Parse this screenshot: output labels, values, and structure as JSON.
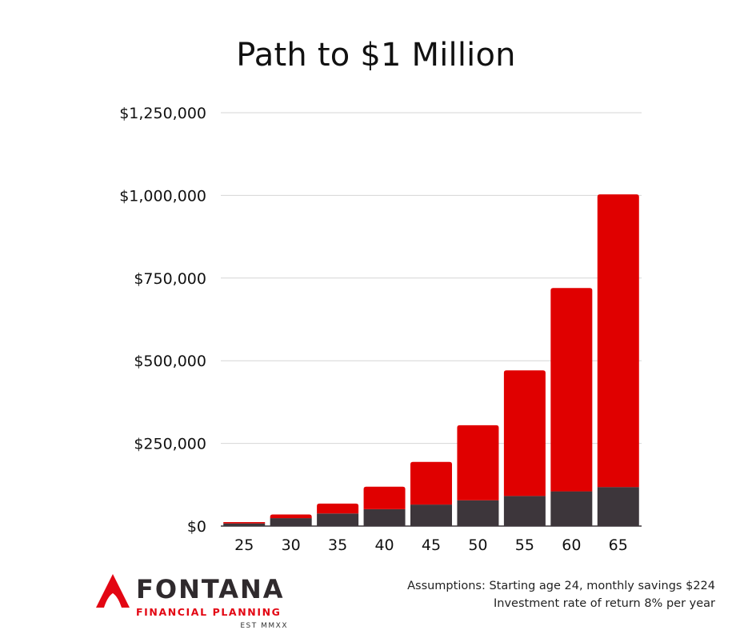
{
  "chart_data": {
    "type": "bar",
    "title": "Path to $1 Million",
    "xlabel": "",
    "ylabel": "",
    "stacked": true,
    "categories": [
      "25",
      "30",
      "35",
      "40",
      "45",
      "50",
      "55",
      "60",
      "65"
    ],
    "series": [
      {
        "values": [
          8000,
          24000,
          38000,
          51000,
          65000,
          78000,
          91000,
          105000,
          118000
        ],
        "color": "#3d363b"
      },
      {
        "values": [
          4000,
          11000,
          30000,
          68000,
          129000,
          227000,
          380000,
          615000,
          885000
        ],
        "color": "#e00000"
      }
    ],
    "ylim": [
      0,
      1250000
    ],
    "yticks": [
      0,
      250000,
      500000,
      750000,
      1000000,
      1250000
    ],
    "ytick_labels": [
      "$0",
      "$250,000",
      "$500,000",
      "$750,000",
      "$1,000,000",
      "$1,250,000"
    ],
    "grid": true,
    "gridline_color": "#d6d6d6"
  },
  "brand": {
    "name": "FONTANA",
    "tagline": "FINANCIAL PLANNING",
    "established": "EST MMXX",
    "accent": "#e30613",
    "dark": "#2f2a2d"
  },
  "assumptions": {
    "line1": "Assumptions: Starting age 24, monthly savings $224",
    "line2": "Investment rate of return 8% per year"
  }
}
